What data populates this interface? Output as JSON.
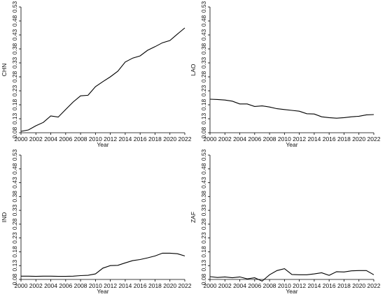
{
  "chart_data": [
    {
      "type": "line",
      "ylabel": "CHN",
      "xlabel": "Year",
      "ylim": [
        0.08,
        0.53
      ],
      "xlim": [
        2000,
        2022
      ],
      "yticks": [
        "0.08",
        "0.13",
        "0.18",
        "0.23",
        "0.28",
        "0.33",
        "0.38",
        "0.43",
        "0.48",
        "0.53"
      ],
      "xticks": [
        "2000",
        "2002",
        "2004",
        "2006",
        "2008",
        "2010",
        "2012",
        "2014",
        "2016",
        "2018",
        "2020",
        "2022"
      ],
      "x": [
        2000,
        2001,
        2002,
        2003,
        2004,
        2005,
        2006,
        2007,
        2008,
        2009,
        2010,
        2011,
        2012,
        2013,
        2014,
        2015,
        2016,
        2017,
        2018,
        2019,
        2020,
        2021,
        2022
      ],
      "series": [
        {
          "values": [
            0.085,
            0.09,
            0.105,
            0.117,
            0.14,
            0.136,
            0.163,
            0.19,
            0.212,
            0.214,
            0.245,
            0.263,
            0.28,
            0.3,
            0.333,
            0.347,
            0.355,
            0.375,
            0.388,
            0.402,
            0.41,
            0.433,
            0.455
          ]
        }
      ],
      "grid": false
    },
    {
      "type": "line",
      "ylabel": "LAO",
      "xlabel": "Year",
      "ylim": [
        0.08,
        0.53
      ],
      "xlim": [
        2000,
        2022
      ],
      "yticks": [
        "0.08",
        "0.13",
        "0.18",
        "0.23",
        "0.28",
        "0.33",
        "0.38",
        "0.43",
        "0.48",
        "0.53"
      ],
      "xticks": [
        "2000",
        "2002",
        "2004",
        "2006",
        "2008",
        "2010",
        "2012",
        "2014",
        "2016",
        "2018",
        "2020",
        "2022"
      ],
      "x": [
        2000,
        2001,
        2002,
        2003,
        2004,
        2005,
        2006,
        2007,
        2008,
        2009,
        2010,
        2011,
        2012,
        2013,
        2014,
        2015,
        2016,
        2017,
        2018,
        2019,
        2020,
        2021,
        2022
      ],
      "series": [
        {
          "values": [
            0.2,
            0.199,
            0.197,
            0.193,
            0.183,
            0.183,
            0.174,
            0.176,
            0.172,
            0.166,
            0.163,
            0.16,
            0.157,
            0.148,
            0.147,
            0.137,
            0.134,
            0.132,
            0.134,
            0.137,
            0.139,
            0.144,
            0.145
          ]
        }
      ],
      "grid": false
    },
    {
      "type": "line",
      "ylabel": "IND",
      "xlabel": "Year",
      "ylim": [
        0.08,
        0.53
      ],
      "xlim": [
        2000,
        2022
      ],
      "yticks": [
        "0.08",
        "0.13",
        "0.18",
        "0.23",
        "0.28",
        "0.33",
        "0.38",
        "0.43",
        "0.48",
        "0.53"
      ],
      "xticks": [
        "2000",
        "2002",
        "2004",
        "2006",
        "2008",
        "2010",
        "2012",
        "2014",
        "2016",
        "2018",
        "2020",
        "2022"
      ],
      "x": [
        2000,
        2001,
        2002,
        2003,
        2004,
        2005,
        2006,
        2007,
        2008,
        2009,
        2010,
        2011,
        2012,
        2013,
        2014,
        2015,
        2016,
        2017,
        2018,
        2019,
        2020,
        2021,
        2022
      ],
      "series": [
        {
          "values": [
            0.092,
            0.092,
            0.091,
            0.092,
            0.092,
            0.091,
            0.091,
            0.092,
            0.094,
            0.095,
            0.1,
            0.121,
            0.13,
            0.131,
            0.14,
            0.148,
            0.152,
            0.158,
            0.165,
            0.175,
            0.175,
            0.173,
            0.165
          ]
        }
      ],
      "grid": false
    },
    {
      "type": "line",
      "ylabel": "ZAF",
      "xlabel": "Year",
      "ylim": [
        0.08,
        0.53
      ],
      "xlim": [
        2000,
        2022
      ],
      "yticks": [
        "0.08",
        "0.13",
        "0.18",
        "0.23",
        "0.28",
        "0.33",
        "0.38",
        "0.43",
        "0.48",
        "0.53"
      ],
      "xticks": [
        "2000",
        "2002",
        "2004",
        "2006",
        "2008",
        "2010",
        "2012",
        "2014",
        "2016",
        "2018",
        "2020",
        "2022"
      ],
      "x": [
        2000,
        2001,
        2002,
        2003,
        2004,
        2005,
        2006,
        2007,
        2008,
        2009,
        2010,
        2011,
        2012,
        2013,
        2014,
        2015,
        2016,
        2017,
        2018,
        2019,
        2020,
        2021,
        2022
      ],
      "series": [
        {
          "values": [
            0.09,
            0.087,
            0.089,
            0.086,
            0.089,
            0.082,
            0.086,
            0.074,
            0.097,
            0.112,
            0.119,
            0.098,
            0.097,
            0.097,
            0.1,
            0.104,
            0.095,
            0.108,
            0.107,
            0.111,
            0.112,
            0.112,
            0.097
          ]
        }
      ],
      "grid": false
    }
  ]
}
